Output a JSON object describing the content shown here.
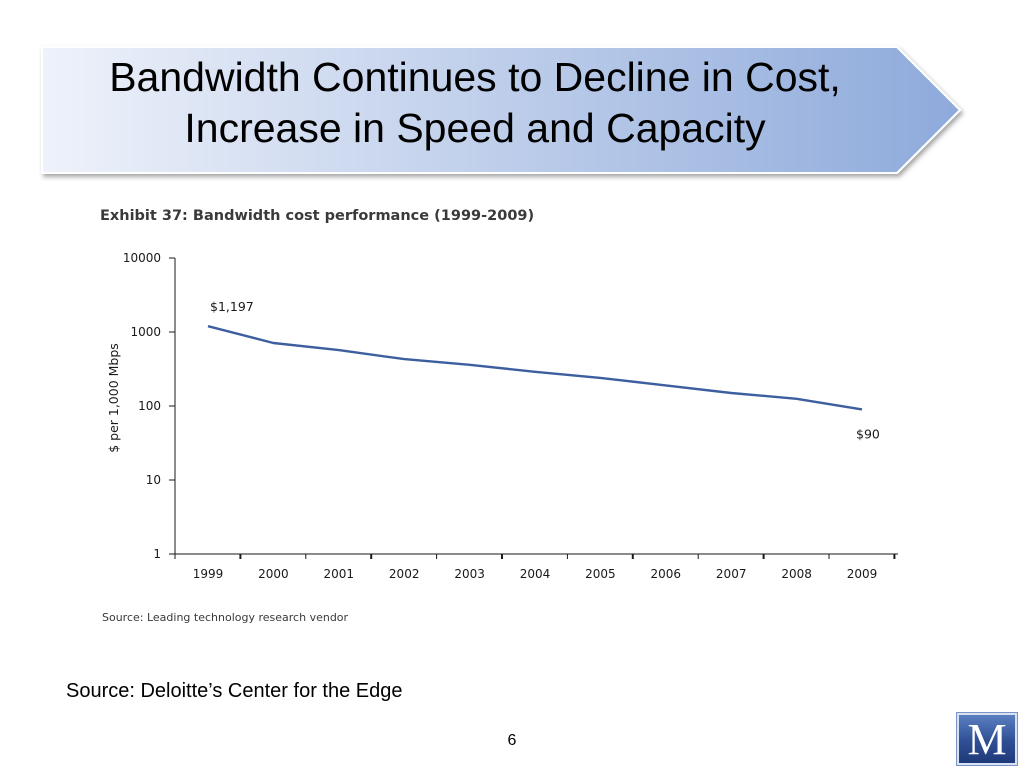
{
  "slide": {
    "title_line1": "Bandwidth Continues to Decline in Cost,",
    "title_line2": "Increase in Speed and Capacity",
    "source": "Source: Deloitte’s Center for the Edge",
    "page_number": "6",
    "logo_letter": "M"
  },
  "colors": {
    "banner_light": "#eef2fa",
    "banner_dark": "#8eaadb",
    "line": "#3d5fa0",
    "axis": "#1a1a1a"
  },
  "chart_data": {
    "type": "line",
    "title": "Exhibit 37: Bandwidth cost performance (1999-2009)",
    "xlabel": "",
    "ylabel": "$ per 1,000 Mbps",
    "y_scale": "log",
    "ylim": [
      1,
      10000
    ],
    "y_ticks": [
      "1",
      "10",
      "100",
      "1000",
      "10000"
    ],
    "x": [
      "1999",
      "2000",
      "2001",
      "2002",
      "2003",
      "2004",
      "2005",
      "2006",
      "2007",
      "2008",
      "2009"
    ],
    "series": [
      {
        "values": [
          1197,
          710,
          570,
          430,
          360,
          290,
          240,
          190,
          150,
          125,
          90
        ]
      }
    ],
    "annotations": [
      {
        "text": "$1,197",
        "x": "1999"
      },
      {
        "text": "$90",
        "x": "2009"
      }
    ],
    "grid": false,
    "legend": "none",
    "source": "Source: Leading technology research vendor"
  }
}
